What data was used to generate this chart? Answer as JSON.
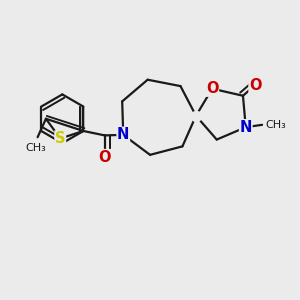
{
  "background_color": "#ebebeb",
  "bond_color": "#1a1a1a",
  "bond_width": 1.6,
  "atom_colors": {
    "S": "#cccc00",
    "N": "#0000cc",
    "O": "#cc0000",
    "C": "#1a1a1a"
  },
  "font_size_atom": 9.5
}
